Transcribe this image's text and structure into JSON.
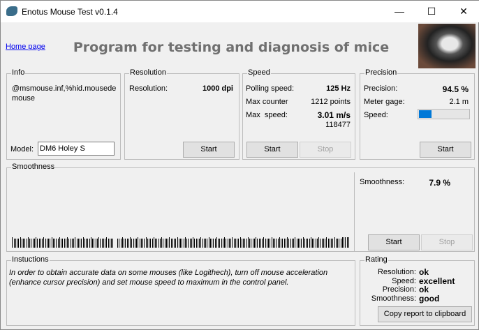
{
  "window": {
    "title": "Enotus Mouse Test v0.1.4",
    "minimize": "—",
    "maximize": "☐",
    "close": "✕"
  },
  "header": {
    "home_link": "Home page",
    "title": "Program for testing and diagnosis of mice"
  },
  "info": {
    "label": "Info",
    "device": "@msmouse.inf,%hid.mousedemouse",
    "model_label": "Model:",
    "model_value": "DM6 Holey S"
  },
  "resolution": {
    "label": "Resolution",
    "field": "Resolution:",
    "value": "1000 dpi",
    "start": "Start"
  },
  "speed": {
    "label": "Speed",
    "polling_label": "Polling speed:",
    "polling_value": "125 Hz",
    "counter_label": "Max counter",
    "counter_value": "1212 points",
    "max_label": "Max  speed:",
    "max_value": "3.01 m/s",
    "max_sub": "118477",
    "start": "Start",
    "stop": "Stop"
  },
  "precision": {
    "label": "Precision",
    "precision_label": "Precision:",
    "precision_value": "94.5 %",
    "meter_label": "Meter gage:",
    "meter_value": "2.1 m",
    "speed_label": "Speed:",
    "speed_bar_fraction": 0.25,
    "bar_color": "#0078d7",
    "start": "Start"
  },
  "smoothness": {
    "label": "Smoothness",
    "field": "Smoothness:",
    "value": "7.9 %",
    "start": "Start",
    "stop": "Stop"
  },
  "instructions": {
    "label": "Instuctions",
    "text": "In order to obtain accurate data on some mouses (like Logithech), turn off mouse acceleration (enhance cursor precision) and set mouse speed to maximum in the control panel."
  },
  "rating": {
    "label": "Rating",
    "items": [
      {
        "k": "Resolution:",
        "v": "ok"
      },
      {
        "k": "Speed:",
        "v": "excellent"
      },
      {
        "k": "Precision:",
        "v": "ok"
      },
      {
        "k": "Smoothness:",
        "v": "good"
      }
    ],
    "copy": "Copy report to clipboard"
  }
}
